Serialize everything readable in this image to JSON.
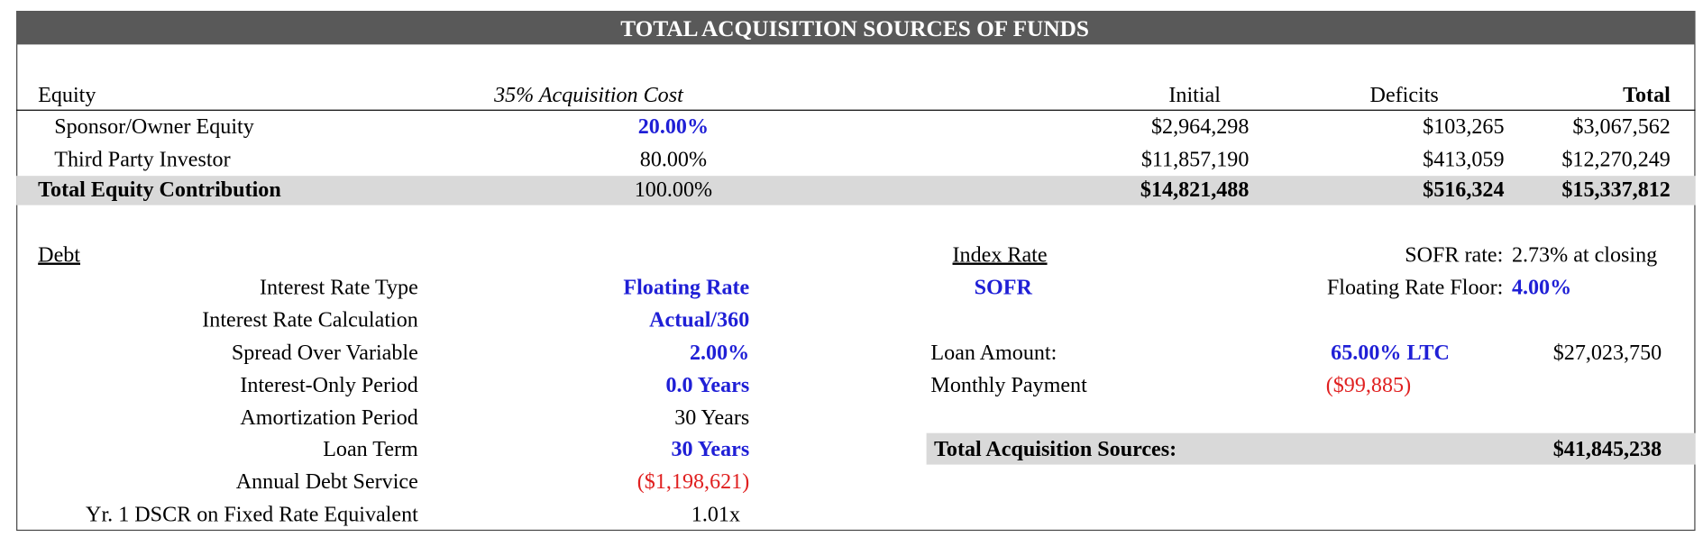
{
  "header": {
    "title": "TOTAL ACQUISITION SOURCES OF FUNDS"
  },
  "equity": {
    "label": "Equity",
    "basis": "35% Acquisition Cost",
    "columns": [
      "Initial",
      "Deficits",
      "Total"
    ],
    "rows": [
      [
        "Sponsor/Owner Equity",
        "20.00%",
        "$2,964,298",
        "$103,265",
        "$3,067,562"
      ],
      [
        "Third Party Investor",
        "80.00%",
        "$11,857,190",
        "$413,059",
        "$12,270,249"
      ],
      [
        "Total Equity Contribution",
        "100.00%",
        "$14,821,488",
        "$516,324",
        "$15,337,812"
      ]
    ]
  },
  "debt": {
    "label": "Debt",
    "rows": [
      [
        "Interest Rate Type",
        "Floating Rate"
      ],
      [
        "Interest Rate Calculation",
        "Actual/360"
      ],
      [
        "Spread Over Variable",
        "2.00%"
      ],
      [
        "Interest-Only Period",
        "0.0 Years"
      ],
      [
        "Amortization Period",
        "30 Years"
      ],
      [
        "Loan Term",
        "30 Years"
      ],
      [
        "Annual Debt Service",
        "($1,198,621)"
      ],
      [
        "Yr. 1 DSCR on Fixed Rate Equivalent",
        "1.01x"
      ]
    ]
  },
  "index": {
    "label": "Index Rate",
    "name": "SOFR",
    "sofr_label": "SOFR rate:",
    "sofr_value": "2.73% at closing",
    "floor_label": "Floating Rate Floor:",
    "floor_value": "4.00%"
  },
  "loan": {
    "amount_label": "Loan Amount:",
    "ltc": "65.00% LTC",
    "amount": "$27,023,750",
    "payment_label": "Monthly Payment",
    "payment": "($99,885)"
  },
  "total_sources": {
    "label": "Total Acquisition Sources:",
    "value": "$41,845,238"
  }
}
